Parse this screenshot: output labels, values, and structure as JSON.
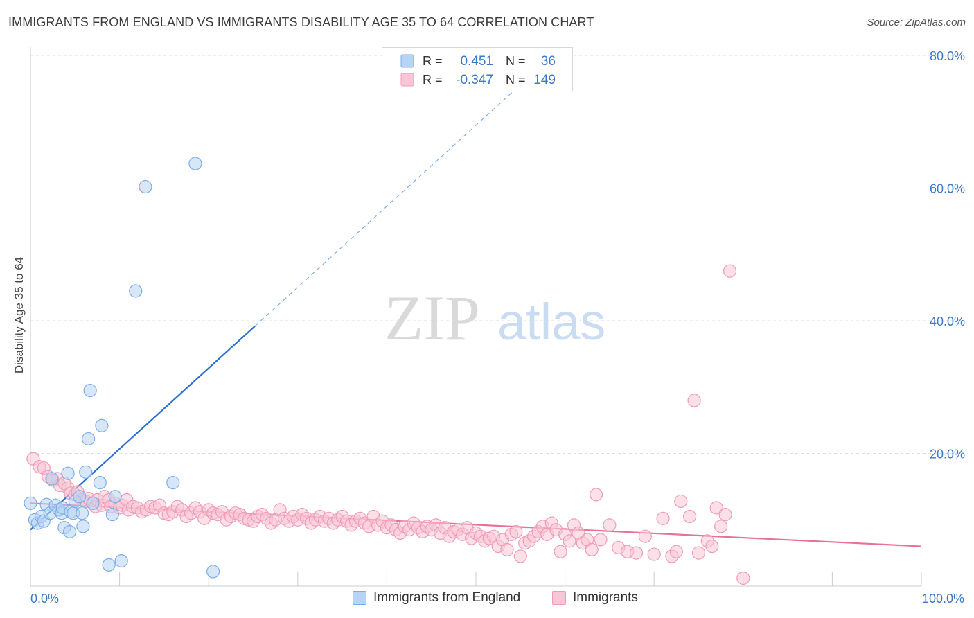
{
  "title": "IMMIGRANTS FROM ENGLAND VS IMMIGRANTS DISABILITY AGE 35 TO 64 CORRELATION CHART",
  "source": "Source: ZipAtlas.com",
  "watermark": {
    "zip": "ZIP",
    "atlas": "atlas"
  },
  "colors": {
    "blue": "#7aaee8",
    "blue_fill": "#b8d3f3",
    "blue_line": "#2a6fd0",
    "pink": "#f09ab8",
    "pink_fill": "#f8c6d6",
    "pink_line": "#e8709a",
    "axis_label": "#3a78c9"
  },
  "legend": {
    "rows": [
      {
        "r_label": "R =",
        "r_value": "0.451",
        "n_label": "N =",
        "n_value": "36"
      },
      {
        "r_label": "R =",
        "r_value": "-0.347",
        "n_label": "N =",
        "n_value": "149"
      }
    ]
  },
  "bottom_legend": {
    "items": [
      {
        "label": "Immigrants from England"
      },
      {
        "label": "Immigrants"
      }
    ]
  },
  "chart_data": {
    "type": "scatter",
    "title": "IMMIGRANTS FROM ENGLAND VS IMMIGRANTS DISABILITY AGE 35 TO 64 CORRELATION CHART",
    "xlabel": "",
    "ylabel": "Disability Age 35 to 64",
    "xlim": [
      0,
      100
    ],
    "ylim": [
      0,
      80
    ],
    "x_tick_labels": [
      "0.0%",
      "100.0%"
    ],
    "y_ticks": [
      20,
      40,
      60,
      80
    ],
    "y_tick_labels": [
      "20.0%",
      "40.0%",
      "60.0%",
      "80.0%"
    ],
    "grid": true,
    "legend_position": "top-center",
    "series": [
      {
        "name": "Immigrants from England",
        "color": "#7aaee8",
        "r": 0.451,
        "n": 36,
        "trend": {
          "x0": 0,
          "y0": 8.5,
          "x1": 25.2,
          "y1": 39.2,
          "dashed_to_x": 56,
          "dashed_to_y": 76.8
        },
        "points": [
          [
            0,
            12.5
          ],
          [
            0.5,
            10.0
          ],
          [
            0.8,
            9.5
          ],
          [
            1.2,
            10.5
          ],
          [
            1.5,
            9.8
          ],
          [
            1.8,
            12.3
          ],
          [
            2.2,
            11.0
          ],
          [
            2.4,
            16.2
          ],
          [
            2.8,
            12.2
          ],
          [
            3.2,
            11.5
          ],
          [
            3.5,
            11.0
          ],
          [
            3.6,
            11.8
          ],
          [
            3.8,
            8.8
          ],
          [
            4.2,
            17.0
          ],
          [
            4.5,
            11.2
          ],
          [
            4.4,
            8.2
          ],
          [
            4.8,
            11.0
          ],
          [
            5.0,
            12.8
          ],
          [
            5.5,
            13.5
          ],
          [
            5.8,
            11.0
          ],
          [
            5.9,
            9.0
          ],
          [
            6.2,
            17.2
          ],
          [
            6.5,
            22.2
          ],
          [
            6.7,
            29.5
          ],
          [
            7.0,
            12.5
          ],
          [
            7.8,
            15.6
          ],
          [
            8.0,
            24.2
          ],
          [
            8.8,
            3.2
          ],
          [
            9.2,
            10.8
          ],
          [
            9.5,
            13.5
          ],
          [
            10.2,
            3.8
          ],
          [
            11.8,
            44.5
          ],
          [
            12.9,
            60.2
          ],
          [
            16.0,
            15.6
          ],
          [
            18.5,
            63.7
          ],
          [
            20.5,
            2.2
          ]
        ]
      },
      {
        "name": "Immigrants",
        "color": "#f09ab8",
        "r": -0.347,
        "n": 149,
        "trend": {
          "x0": 0,
          "y0": 12.5,
          "x1": 100,
          "y1": 6.0
        },
        "points": [
          [
            0.3,
            19.2
          ],
          [
            1.0,
            18.0
          ],
          [
            1.5,
            17.8
          ],
          [
            2.0,
            16.5
          ],
          [
            2.5,
            16.0
          ],
          [
            3.0,
            16.2
          ],
          [
            3.3,
            15.2
          ],
          [
            3.8,
            15.5
          ],
          [
            4.2,
            14.8
          ],
          [
            4.5,
            14.0
          ],
          [
            5.0,
            13.8
          ],
          [
            5.3,
            14.2
          ],
          [
            5.8,
            13.0
          ],
          [
            6.2,
            12.8
          ],
          [
            6.5,
            13.2
          ],
          [
            7.0,
            12.5
          ],
          [
            7.3,
            12.0
          ],
          [
            7.5,
            13.0
          ],
          [
            8.0,
            12.2
          ],
          [
            8.3,
            13.5
          ],
          [
            8.8,
            13.0
          ],
          [
            9.0,
            12.0
          ],
          [
            9.5,
            12.5
          ],
          [
            10.0,
            11.8
          ],
          [
            10.3,
            12.2
          ],
          [
            10.8,
            13.0
          ],
          [
            11.0,
            11.5
          ],
          [
            11.5,
            12.0
          ],
          [
            12.0,
            11.8
          ],
          [
            12.5,
            11.2
          ],
          [
            13.0,
            11.5
          ],
          [
            13.5,
            12.0
          ],
          [
            14.0,
            11.8
          ],
          [
            14.5,
            12.2
          ],
          [
            15.0,
            11.0
          ],
          [
            15.5,
            10.8
          ],
          [
            16.0,
            11.2
          ],
          [
            16.5,
            12.0
          ],
          [
            17.0,
            11.5
          ],
          [
            17.5,
            10.5
          ],
          [
            18.0,
            11.0
          ],
          [
            18.5,
            11.8
          ],
          [
            19.0,
            11.2
          ],
          [
            19.5,
            10.2
          ],
          [
            20.0,
            11.5
          ],
          [
            20.5,
            11.0
          ],
          [
            21.0,
            10.8
          ],
          [
            21.5,
            11.2
          ],
          [
            22.0,
            10.0
          ],
          [
            22.5,
            10.5
          ],
          [
            23.0,
            11.0
          ],
          [
            23.5,
            10.8
          ],
          [
            24.0,
            10.2
          ],
          [
            24.5,
            10.0
          ],
          [
            25.0,
            9.8
          ],
          [
            25.5,
            10.5
          ],
          [
            26.0,
            10.8
          ],
          [
            26.5,
            10.2
          ],
          [
            27.0,
            9.5
          ],
          [
            27.5,
            10.0
          ],
          [
            28.0,
            11.5
          ],
          [
            28.5,
            10.2
          ],
          [
            29.0,
            9.8
          ],
          [
            29.5,
            10.5
          ],
          [
            30.0,
            10.0
          ],
          [
            30.5,
            10.8
          ],
          [
            31.0,
            10.2
          ],
          [
            31.5,
            9.5
          ],
          [
            32.0,
            10.0
          ],
          [
            32.5,
            10.5
          ],
          [
            33.0,
            9.8
          ],
          [
            33.5,
            10.2
          ],
          [
            34.0,
            9.5
          ],
          [
            34.5,
            10.0
          ],
          [
            35.0,
            10.5
          ],
          [
            35.5,
            9.8
          ],
          [
            36.0,
            9.2
          ],
          [
            36.5,
            9.8
          ],
          [
            37.0,
            10.2
          ],
          [
            37.5,
            9.5
          ],
          [
            38.0,
            9.0
          ],
          [
            38.5,
            10.5
          ],
          [
            39.0,
            9.2
          ],
          [
            39.5,
            9.8
          ],
          [
            40.0,
            8.8
          ],
          [
            40.5,
            9.2
          ],
          [
            41.0,
            8.5
          ],
          [
            41.5,
            8.0
          ],
          [
            42.0,
            9.0
          ],
          [
            42.5,
            8.5
          ],
          [
            43.0,
            9.5
          ],
          [
            43.5,
            8.8
          ],
          [
            44.0,
            8.2
          ],
          [
            44.5,
            9.0
          ],
          [
            45.0,
            8.5
          ],
          [
            45.5,
            9.2
          ],
          [
            46.0,
            8.0
          ],
          [
            46.5,
            8.8
          ],
          [
            47.0,
            7.5
          ],
          [
            47.5,
            8.2
          ],
          [
            48.0,
            8.5
          ],
          [
            48.5,
            7.8
          ],
          [
            49.0,
            8.8
          ],
          [
            49.5,
            7.2
          ],
          [
            50.0,
            8.0
          ],
          [
            50.5,
            7.5
          ],
          [
            51.0,
            6.8
          ],
          [
            51.5,
            7.2
          ],
          [
            52.0,
            7.5
          ],
          [
            52.5,
            6.0
          ],
          [
            53.0,
            7.0
          ],
          [
            53.5,
            5.5
          ],
          [
            54.0,
            7.8
          ],
          [
            54.5,
            8.2
          ],
          [
            55.0,
            4.5
          ],
          [
            55.5,
            6.5
          ],
          [
            56.0,
            6.8
          ],
          [
            56.5,
            7.5
          ],
          [
            57.0,
            8.2
          ],
          [
            57.5,
            9.0
          ],
          [
            58.0,
            7.8
          ],
          [
            58.5,
            9.5
          ],
          [
            59.0,
            8.5
          ],
          [
            59.5,
            5.2
          ],
          [
            60.0,
            7.8
          ],
          [
            60.5,
            6.8
          ],
          [
            61.0,
            9.2
          ],
          [
            61.5,
            8.0
          ],
          [
            62.0,
            6.5
          ],
          [
            62.5,
            7.0
          ],
          [
            63.0,
            5.5
          ],
          [
            63.5,
            13.8
          ],
          [
            64.0,
            7.0
          ],
          [
            65.0,
            9.2
          ],
          [
            66.0,
            5.8
          ],
          [
            67.0,
            5.2
          ],
          [
            68.0,
            5.0
          ],
          [
            69.0,
            7.5
          ],
          [
            70.0,
            4.8
          ],
          [
            71.0,
            10.2
          ],
          [
            72.0,
            4.5
          ],
          [
            72.5,
            5.2
          ],
          [
            73.0,
            12.8
          ],
          [
            74.0,
            10.5
          ],
          [
            75.0,
            5.0
          ],
          [
            76.0,
            6.8
          ],
          [
            77.0,
            11.8
          ],
          [
            78.0,
            10.8
          ],
          [
            74.5,
            28.0
          ],
          [
            78.5,
            47.5
          ],
          [
            80.0,
            1.2
          ],
          [
            76.5,
            6.0
          ],
          [
            77.5,
            9.0
          ]
        ]
      }
    ]
  }
}
